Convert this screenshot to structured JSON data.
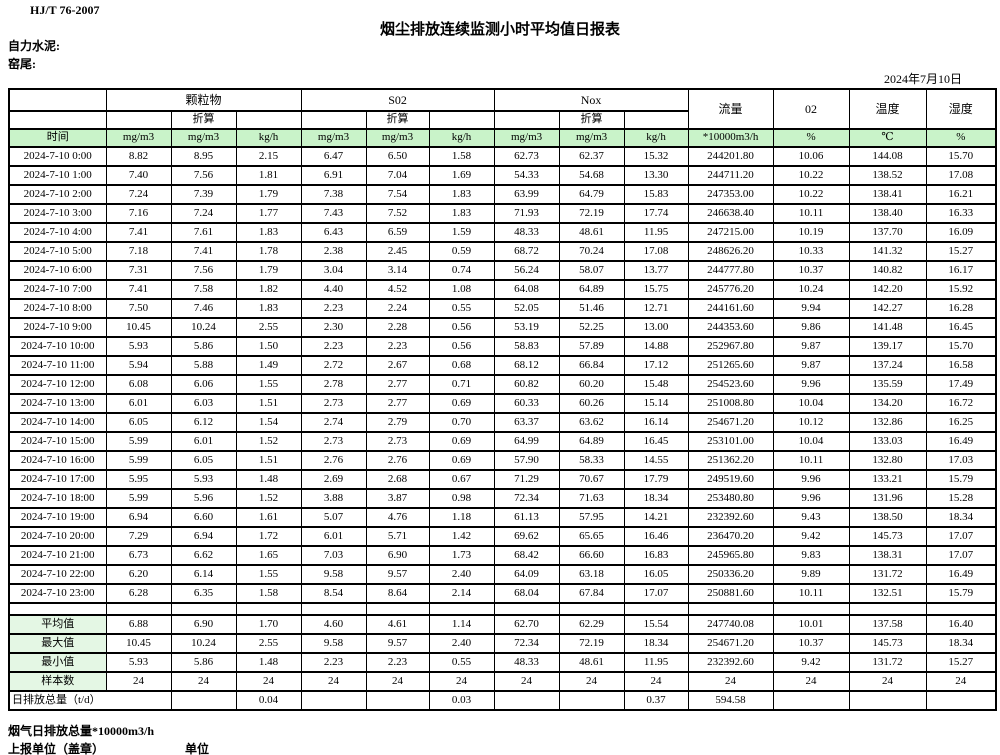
{
  "page": {
    "standard_code": "HJ/T  76-2007",
    "title": "烟尘排放连续监测小时平均值日报表",
    "company_label": "自力水泥:",
    "site_label": "窑尾:",
    "date": "2024年7月10日"
  },
  "table": {
    "header": {
      "time_label": "时间",
      "groups": [
        "颗粒物",
        "S02",
        "Nox"
      ],
      "converted_label": "折算",
      "singles": [
        "流量",
        "02",
        "温度",
        "湿度"
      ],
      "units": [
        "时间",
        "mg/m3",
        "mg/m3",
        "kg/h",
        "mg/m3",
        "mg/m3",
        "kg/h",
        "mg/m3",
        "mg/m3",
        "kg/h",
        "*10000m3/h",
        "%",
        "℃",
        "%"
      ]
    },
    "rows": [
      [
        "2024-7-10 0:00",
        "8.82",
        "8.95",
        "2.15",
        "6.47",
        "6.50",
        "1.58",
        "62.73",
        "62.37",
        "15.32",
        "244201.80",
        "10.06",
        "144.08",
        "15.70"
      ],
      [
        "2024-7-10 1:00",
        "7.40",
        "7.56",
        "1.81",
        "6.91",
        "7.04",
        "1.69",
        "54.33",
        "54.68",
        "13.30",
        "244711.20",
        "10.22",
        "138.52",
        "17.08"
      ],
      [
        "2024-7-10 2:00",
        "7.24",
        "7.39",
        "1.79",
        "7.38",
        "7.54",
        "1.83",
        "63.99",
        "64.79",
        "15.83",
        "247353.00",
        "10.22",
        "138.41",
        "16.21"
      ],
      [
        "2024-7-10 3:00",
        "7.16",
        "7.24",
        "1.77",
        "7.43",
        "7.52",
        "1.83",
        "71.93",
        "72.19",
        "17.74",
        "246638.40",
        "10.11",
        "138.40",
        "16.33"
      ],
      [
        "2024-7-10 4:00",
        "7.41",
        "7.61",
        "1.83",
        "6.43",
        "6.59",
        "1.59",
        "48.33",
        "48.61",
        "11.95",
        "247215.00",
        "10.19",
        "137.70",
        "16.09"
      ],
      [
        "2024-7-10 5:00",
        "7.18",
        "7.41",
        "1.78",
        "2.38",
        "2.45",
        "0.59",
        "68.72",
        "70.24",
        "17.08",
        "248626.20",
        "10.33",
        "141.32",
        "15.27"
      ],
      [
        "2024-7-10 6:00",
        "7.31",
        "7.56",
        "1.79",
        "3.04",
        "3.14",
        "0.74",
        "56.24",
        "58.07",
        "13.77",
        "244777.80",
        "10.37",
        "140.82",
        "16.17"
      ],
      [
        "2024-7-10 7:00",
        "7.41",
        "7.58",
        "1.82",
        "4.40",
        "4.52",
        "1.08",
        "64.08",
        "64.89",
        "15.75",
        "245776.20",
        "10.24",
        "142.20",
        "15.92"
      ],
      [
        "2024-7-10 8:00",
        "7.50",
        "7.46",
        "1.83",
        "2.23",
        "2.24",
        "0.55",
        "52.05",
        "51.46",
        "12.71",
        "244161.60",
        "9.94",
        "142.27",
        "16.28"
      ],
      [
        "2024-7-10 9:00",
        "10.45",
        "10.24",
        "2.55",
        "2.30",
        "2.28",
        "0.56",
        "53.19",
        "52.25",
        "13.00",
        "244353.60",
        "9.86",
        "141.48",
        "16.45"
      ],
      [
        "2024-7-10 10:00",
        "5.93",
        "5.86",
        "1.50",
        "2.23",
        "2.23",
        "0.56",
        "58.83",
        "57.89",
        "14.88",
        "252967.80",
        "9.87",
        "139.17",
        "15.70"
      ],
      [
        "2024-7-10 11:00",
        "5.94",
        "5.88",
        "1.49",
        "2.72",
        "2.67",
        "0.68",
        "68.12",
        "66.84",
        "17.12",
        "251265.60",
        "9.87",
        "137.24",
        "16.58"
      ],
      [
        "2024-7-10 12:00",
        "6.08",
        "6.06",
        "1.55",
        "2.78",
        "2.77",
        "0.71",
        "60.82",
        "60.20",
        "15.48",
        "254523.60",
        "9.96",
        "135.59",
        "17.49"
      ],
      [
        "2024-7-10 13:00",
        "6.01",
        "6.03",
        "1.51",
        "2.73",
        "2.77",
        "0.69",
        "60.33",
        "60.26",
        "15.14",
        "251008.80",
        "10.04",
        "134.20",
        "16.72"
      ],
      [
        "2024-7-10 14:00",
        "6.05",
        "6.12",
        "1.54",
        "2.74",
        "2.79",
        "0.70",
        "63.37",
        "63.62",
        "16.14",
        "254671.20",
        "10.12",
        "132.86",
        "16.25"
      ],
      [
        "2024-7-10 15:00",
        "5.99",
        "6.01",
        "1.52",
        "2.73",
        "2.73",
        "0.69",
        "64.99",
        "64.89",
        "16.45",
        "253101.00",
        "10.04",
        "133.03",
        "16.49"
      ],
      [
        "2024-7-10 16:00",
        "5.99",
        "6.05",
        "1.51",
        "2.76",
        "2.76",
        "0.69",
        "57.90",
        "58.33",
        "14.55",
        "251362.20",
        "10.11",
        "132.80",
        "17.03"
      ],
      [
        "2024-7-10 17:00",
        "5.95",
        "5.93",
        "1.48",
        "2.69",
        "2.68",
        "0.67",
        "71.29",
        "70.67",
        "17.79",
        "249519.60",
        "9.96",
        "133.21",
        "15.79"
      ],
      [
        "2024-7-10 18:00",
        "5.99",
        "5.96",
        "1.52",
        "3.88",
        "3.87",
        "0.98",
        "72.34",
        "71.63",
        "18.34",
        "253480.80",
        "9.96",
        "131.96",
        "15.28"
      ],
      [
        "2024-7-10 19:00",
        "6.94",
        "6.60",
        "1.61",
        "5.07",
        "4.76",
        "1.18",
        "61.13",
        "57.95",
        "14.21",
        "232392.60",
        "9.43",
        "138.50",
        "18.34"
      ],
      [
        "2024-7-10 20:00",
        "7.29",
        "6.94",
        "1.72",
        "6.01",
        "5.71",
        "1.42",
        "69.62",
        "65.65",
        "16.46",
        "236470.20",
        "9.42",
        "145.73",
        "17.07"
      ],
      [
        "2024-7-10 21:00",
        "6.73",
        "6.62",
        "1.65",
        "7.03",
        "6.90",
        "1.73",
        "68.42",
        "66.60",
        "16.83",
        "245965.80",
        "9.83",
        "138.31",
        "17.07"
      ],
      [
        "2024-7-10 22:00",
        "6.20",
        "6.14",
        "1.55",
        "9.58",
        "9.57",
        "2.40",
        "64.09",
        "63.18",
        "16.05",
        "250336.20",
        "9.89",
        "131.72",
        "16.49"
      ],
      [
        "2024-7-10 23:00",
        "6.28",
        "6.35",
        "1.58",
        "8.54",
        "8.64",
        "2.14",
        "68.04",
        "67.84",
        "17.07",
        "250881.60",
        "10.11",
        "132.51",
        "15.79"
      ]
    ],
    "summary": [
      {
        "label": "平均值",
        "values": [
          "6.88",
          "6.90",
          "1.70",
          "4.60",
          "4.61",
          "1.14",
          "62.70",
          "62.29",
          "15.54",
          "247740.08",
          "10.01",
          "137.58",
          "16.40"
        ]
      },
      {
        "label": "最大值",
        "values": [
          "10.45",
          "10.24",
          "2.55",
          "9.58",
          "9.57",
          "2.40",
          "72.34",
          "72.19",
          "18.34",
          "254671.20",
          "10.37",
          "145.73",
          "18.34"
        ]
      },
      {
        "label": "最小值",
        "values": [
          "5.93",
          "5.86",
          "1.48",
          "2.23",
          "2.23",
          "0.55",
          "48.33",
          "48.61",
          "11.95",
          "232392.60",
          "9.42",
          "131.72",
          "15.27"
        ]
      },
      {
        "label": "样本数",
        "values": [
          "24",
          "24",
          "24",
          "24",
          "24",
          "24",
          "24",
          "24",
          "24",
          "24",
          "24",
          "24",
          "24"
        ]
      }
    ],
    "daily_total": {
      "label": "日排放总量（t/d）",
      "values": [
        "",
        "0.04",
        "",
        "",
        "0.03",
        "",
        "",
        "0.37",
        "594.58",
        "",
        "",
        ""
      ]
    }
  },
  "footer": {
    "note": "烟气日排放总量*10000m3/h",
    "report_unit_label": "上报单位（盖章）",
    "unit_label": "单位"
  },
  "colors": {
    "header_green": "#c9f3c9",
    "summary_label_green": "#e4f7e4",
    "border": "#000000"
  }
}
